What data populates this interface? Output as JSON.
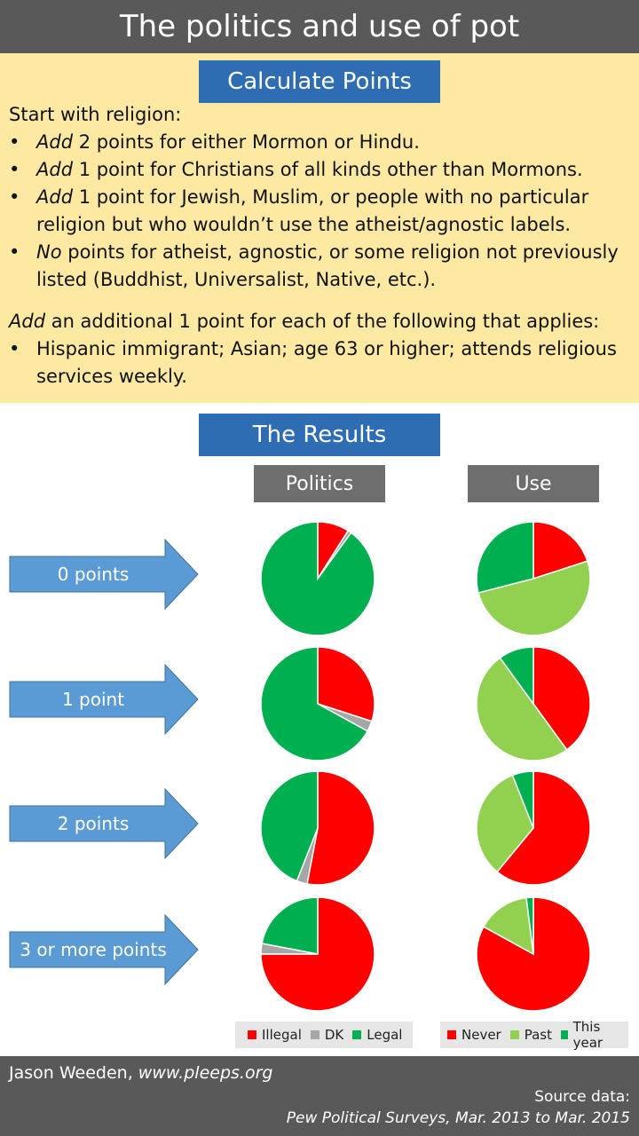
{
  "title": "The politics and use of pot",
  "calc_header": "Calculate Points",
  "rules": {
    "intro": "Start with religion:",
    "items": [
      {
        "em": "Add",
        "rest": " 2 points for either Mormon or Hindu."
      },
      {
        "em": "Add",
        "rest": " 1 point for Christians of all kinds other than Mormons."
      },
      {
        "em": "Add",
        "rest": " 1 point for Jewish, Muslim, or people with no particular religion but who wouldn’t use the atheist/agnostic labels."
      },
      {
        "em": "No",
        "rest": " points for atheist, agnostic, or some religion not previously listed (Buddhist, Universalist, Native, etc.)."
      }
    ],
    "additional_em": "Add",
    "additional_rest": " an additional 1 point for each of the following that applies:",
    "additional_items": [
      "Hispanic immigrant; Asian; age 63 or higher; attends religious services weekly."
    ]
  },
  "results_header": "The Results",
  "columns": {
    "politics": "Politics",
    "use": "Use"
  },
  "rows": [
    "0 points",
    "1 point",
    "2 points",
    "3 or more points"
  ],
  "chart_data": [
    {
      "type": "pie",
      "title": "Politics",
      "categories": [
        "Illegal",
        "DK",
        "Legal"
      ],
      "colors": [
        "#ff0000",
        "#a6a6a6",
        "#00b050"
      ],
      "series": [
        {
          "name": "0 points",
          "values": [
            9,
            1,
            90
          ]
        },
        {
          "name": "1 point",
          "values": [
            30,
            3,
            67
          ]
        },
        {
          "name": "2 points",
          "values": [
            53,
            3,
            44
          ]
        },
        {
          "name": "3 or more points",
          "values": [
            75,
            3,
            22
          ]
        }
      ]
    },
    {
      "type": "pie",
      "title": "Use",
      "categories": [
        "Never",
        "Past",
        "This year"
      ],
      "colors": [
        "#ff0000",
        "#92d050",
        "#00b050"
      ],
      "series": [
        {
          "name": "0 points",
          "values": [
            20,
            51,
            29
          ]
        },
        {
          "name": "1 point",
          "values": [
            40,
            50,
            10
          ]
        },
        {
          "name": "2 points",
          "values": [
            61,
            33,
            6
          ]
        },
        {
          "name": "3 or more points",
          "values": [
            83,
            15,
            2
          ]
        }
      ]
    }
  ],
  "footer": {
    "author": "Jason Weeden, ",
    "site": "www.pleeps.org",
    "source_label": "Source data:",
    "source": "Pew Political Surveys,  Mar. 2013 to Mar. 2015"
  }
}
